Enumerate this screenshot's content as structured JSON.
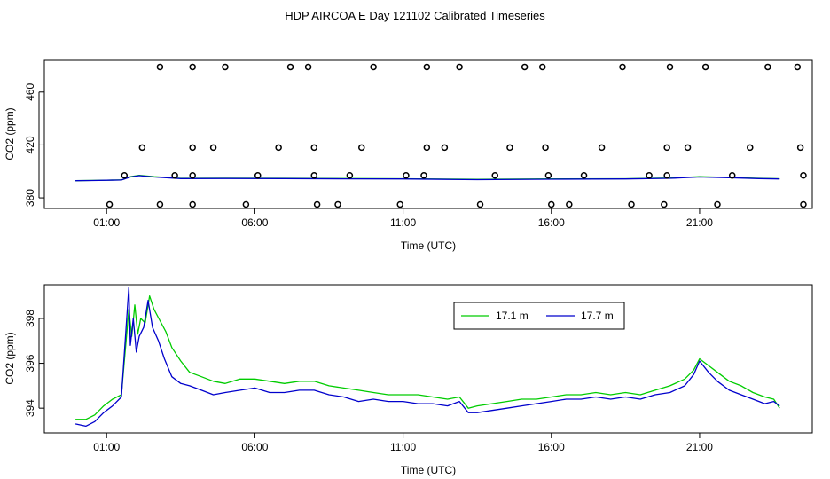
{
  "figure": {
    "title": "HDP AIRCOA E  Day 121102  Calibrated Timeseries"
  },
  "chart_data": [
    {
      "type": "line+scatter",
      "xlabel": "Time (UTC)",
      "ylabel": "CO2 (ppm)",
      "xlim": [
        -1.1,
        24.8
      ],
      "ylim": [
        372,
        484
      ],
      "x_ticks": [
        {
          "value": 1,
          "label": "01:00"
        },
        {
          "value": 6,
          "label": "06:00"
        },
        {
          "value": 11,
          "label": "11:00"
        },
        {
          "value": 16,
          "label": "16:00"
        },
        {
          "value": 21,
          "label": "21:00"
        }
      ],
      "y_ticks": [
        {
          "value": 380,
          "label": "380"
        },
        {
          "value": 420,
          "label": "420"
        },
        {
          "value": 460,
          "label": "460"
        }
      ],
      "calibration_points": [
        {
          "x": 1.1,
          "y": 375
        },
        {
          "x": 2.8,
          "y": 375
        },
        {
          "x": 3.9,
          "y": 375
        },
        {
          "x": 5.7,
          "y": 375
        },
        {
          "x": 8.1,
          "y": 375
        },
        {
          "x": 8.8,
          "y": 375
        },
        {
          "x": 10.9,
          "y": 375
        },
        {
          "x": 13.6,
          "y": 375
        },
        {
          "x": 16.0,
          "y": 375
        },
        {
          "x": 16.6,
          "y": 375
        },
        {
          "x": 18.7,
          "y": 375
        },
        {
          "x": 19.8,
          "y": 375
        },
        {
          "x": 21.6,
          "y": 375
        },
        {
          "x": 24.5,
          "y": 375
        },
        {
          "x": 1.6,
          "y": 397
        },
        {
          "x": 3.3,
          "y": 397
        },
        {
          "x": 3.9,
          "y": 397
        },
        {
          "x": 6.1,
          "y": 397
        },
        {
          "x": 8.0,
          "y": 397
        },
        {
          "x": 9.2,
          "y": 397
        },
        {
          "x": 11.1,
          "y": 397
        },
        {
          "x": 11.7,
          "y": 397
        },
        {
          "x": 14.1,
          "y": 397
        },
        {
          "x": 15.9,
          "y": 397
        },
        {
          "x": 17.1,
          "y": 397
        },
        {
          "x": 19.3,
          "y": 397
        },
        {
          "x": 19.9,
          "y": 397
        },
        {
          "x": 22.1,
          "y": 397
        },
        {
          "x": 24.5,
          "y": 397
        },
        {
          "x": 2.2,
          "y": 418
        },
        {
          "x": 3.9,
          "y": 418
        },
        {
          "x": 4.6,
          "y": 418
        },
        {
          "x": 6.8,
          "y": 418
        },
        {
          "x": 8.0,
          "y": 418
        },
        {
          "x": 9.6,
          "y": 418
        },
        {
          "x": 11.8,
          "y": 418
        },
        {
          "x": 12.4,
          "y": 418
        },
        {
          "x": 14.6,
          "y": 418
        },
        {
          "x": 15.8,
          "y": 418
        },
        {
          "x": 17.7,
          "y": 418
        },
        {
          "x": 19.9,
          "y": 418
        },
        {
          "x": 20.6,
          "y": 418
        },
        {
          "x": 22.7,
          "y": 418
        },
        {
          "x": 24.4,
          "y": 418
        },
        {
          "x": 2.8,
          "y": 479
        },
        {
          "x": 3.9,
          "y": 479
        },
        {
          "x": 5.0,
          "y": 479
        },
        {
          "x": 7.2,
          "y": 479
        },
        {
          "x": 7.8,
          "y": 479
        },
        {
          "x": 10.0,
          "y": 479
        },
        {
          "x": 11.8,
          "y": 479
        },
        {
          "x": 12.9,
          "y": 479
        },
        {
          "x": 15.1,
          "y": 479
        },
        {
          "x": 15.7,
          "y": 479
        },
        {
          "x": 18.4,
          "y": 479
        },
        {
          "x": 20.0,
          "y": 479
        },
        {
          "x": 21.2,
          "y": 479
        },
        {
          "x": 23.3,
          "y": 479
        },
        {
          "x": 24.3,
          "y": 479
        }
      ],
      "series": [
        {
          "color": "#00cc00",
          "x": [
            -0.05,
            0.5,
            1.0,
            1.5,
            1.8,
            2.1,
            2.6,
            3.5,
            5,
            7,
            9,
            11,
            12.5,
            13.5,
            16,
            18.5,
            20,
            21,
            22,
            23,
            23.7
          ],
          "values": [
            393,
            393.2,
            393.4,
            393.6,
            396,
            397,
            396,
            394.8,
            394.9,
            394.8,
            394.6,
            394.5,
            394.2,
            394,
            394.3,
            394.5,
            395,
            396,
            395.5,
            394.8,
            394.5
          ]
        },
        {
          "color": "#0000cc",
          "x": [
            -0.05,
            0.5,
            1.0,
            1.5,
            1.8,
            2.1,
            2.6,
            3.5,
            5,
            7,
            9,
            11,
            12.5,
            13.5,
            16,
            18.5,
            20,
            21,
            22,
            23,
            23.7
          ],
          "values": [
            393,
            393.1,
            393.3,
            393.5,
            395.8,
            396.8,
            395.8,
            394.6,
            394.7,
            394.6,
            394.4,
            394.3,
            394,
            393.8,
            394.1,
            394.3,
            394.8,
            395.8,
            395.3,
            394.6,
            394.3
          ]
        }
      ]
    },
    {
      "type": "line",
      "xlabel": "Time (UTC)",
      "ylabel": "CO2 (ppm)",
      "xlim": [
        -1.1,
        24.8
      ],
      "ylim": [
        392.9,
        399.5
      ],
      "x_ticks": [
        {
          "value": 1,
          "label": "01:00"
        },
        {
          "value": 6,
          "label": "06:00"
        },
        {
          "value": 11,
          "label": "11:00"
        },
        {
          "value": 16,
          "label": "16:00"
        },
        {
          "value": 21,
          "label": "21:00"
        }
      ],
      "y_ticks": [
        {
          "value": 394,
          "label": "394"
        },
        {
          "value": 396,
          "label": "396"
        },
        {
          "value": 398,
          "label": "398"
        }
      ],
      "legend_position": "top-right",
      "series": [
        {
          "name": "17.1 m",
          "color": "#00cc00",
          "x": [
            -0.05,
            0.3,
            0.6,
            0.9,
            1.2,
            1.5,
            1.75,
            1.85,
            1.95,
            2.05,
            2.15,
            2.3,
            2.45,
            2.6,
            2.8,
            3.0,
            3.2,
            3.5,
            3.8,
            4.2,
            4.6,
            5.0,
            5.5,
            6.0,
            6.5,
            7.0,
            7.5,
            8.0,
            8.5,
            9.0,
            9.5,
            10.0,
            10.5,
            11.0,
            11.5,
            12.0,
            12.5,
            12.9,
            13.2,
            13.5,
            14.0,
            14.5,
            15.0,
            15.5,
            16.0,
            16.5,
            17.0,
            17.5,
            18.0,
            18.5,
            19.0,
            19.5,
            20.0,
            20.5,
            20.8,
            21.0,
            21.3,
            21.6,
            22.0,
            22.4,
            22.8,
            23.2,
            23.5,
            23.7
          ],
          "values": [
            393.5,
            393.5,
            393.7,
            394.1,
            394.4,
            394.6,
            398.4,
            397.2,
            398.6,
            397.3,
            398.0,
            397.8,
            399.0,
            398.4,
            397.9,
            397.4,
            396.7,
            396.1,
            395.6,
            395.4,
            395.2,
            395.1,
            395.3,
            395.3,
            395.2,
            395.1,
            395.2,
            395.2,
            395.0,
            394.9,
            394.8,
            394.7,
            394.6,
            394.6,
            394.6,
            394.5,
            394.4,
            394.5,
            394.0,
            394.1,
            394.2,
            394.3,
            394.4,
            394.4,
            394.5,
            394.6,
            394.6,
            394.7,
            394.6,
            394.7,
            394.6,
            394.8,
            395.0,
            395.3,
            395.7,
            396.2,
            395.9,
            395.6,
            395.2,
            395.0,
            394.7,
            394.5,
            394.4,
            394.0
          ]
        },
        {
          "name": "17.7 m",
          "color": "#0000cc",
          "x": [
            -0.05,
            0.3,
            0.6,
            0.9,
            1.2,
            1.5,
            1.75,
            1.8,
            1.9,
            2.0,
            2.1,
            2.25,
            2.4,
            2.55,
            2.75,
            2.95,
            3.2,
            3.5,
            3.8,
            4.2,
            4.6,
            5.0,
            5.5,
            6.0,
            6.5,
            7.0,
            7.5,
            8.0,
            8.5,
            9.0,
            9.5,
            10.0,
            10.5,
            11.0,
            11.5,
            12.0,
            12.5,
            12.9,
            13.2,
            13.5,
            14.0,
            14.5,
            15.0,
            15.5,
            16.0,
            16.5,
            17.0,
            17.5,
            18.0,
            18.5,
            19.0,
            19.5,
            20.0,
            20.5,
            20.8,
            21.0,
            21.3,
            21.6,
            22.0,
            22.4,
            22.8,
            23.2,
            23.5,
            23.7
          ],
          "values": [
            393.3,
            393.2,
            393.4,
            393.8,
            394.1,
            394.5,
            399.4,
            396.8,
            398.0,
            396.5,
            397.2,
            397.6,
            398.8,
            397.6,
            397.0,
            396.2,
            395.4,
            395.1,
            395.0,
            394.8,
            394.6,
            394.7,
            394.8,
            394.9,
            394.7,
            394.7,
            394.8,
            394.8,
            394.6,
            394.5,
            394.3,
            394.4,
            394.3,
            394.3,
            394.2,
            394.2,
            394.1,
            394.3,
            393.8,
            393.8,
            393.9,
            394.0,
            394.1,
            394.2,
            394.3,
            394.4,
            394.4,
            394.5,
            394.4,
            394.5,
            394.4,
            394.6,
            394.7,
            395.0,
            395.5,
            396.1,
            395.6,
            395.2,
            394.8,
            394.6,
            394.4,
            394.2,
            394.3,
            394.1
          ]
        }
      ]
    }
  ]
}
